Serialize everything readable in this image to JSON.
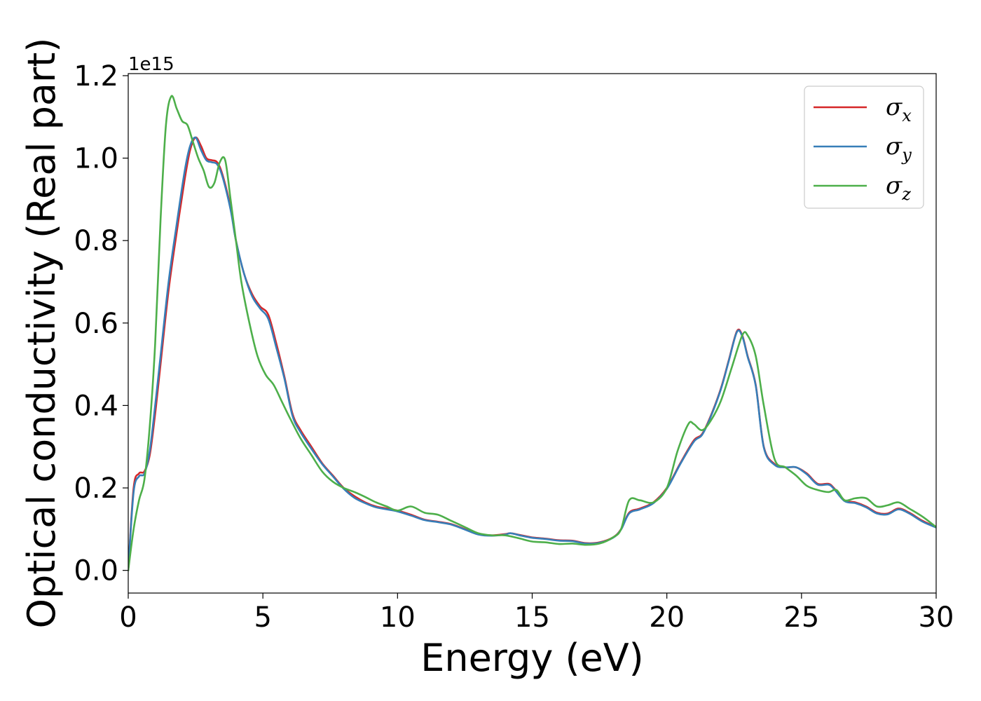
{
  "chart_data": {
    "type": "line",
    "title": "",
    "xlabel": "Energy (eV)",
    "ylabel": "Optical conductivity (Real part)",
    "y_offset_label": "1e15",
    "xlim": [
      0,
      30
    ],
    "ylim": [
      -0.055,
      1.205
    ],
    "xticks": [
      0,
      5,
      10,
      15,
      20,
      25,
      30
    ],
    "xtick_labels": [
      "0",
      "5",
      "10",
      "15",
      "20",
      "25",
      "30"
    ],
    "yticks": [
      0.0,
      0.2,
      0.4,
      0.6,
      0.8,
      1.0,
      1.2
    ],
    "ytick_labels": [
      "0.0",
      "0.2",
      "0.4",
      "0.6",
      "0.8",
      "1.0",
      "1.2"
    ],
    "grid": false,
    "legend_position": "top-right",
    "series": [
      {
        "name": "σx",
        "legend_base": "σ",
        "legend_sub": "x",
        "color": "#d62728",
        "x": [
          0,
          0.2,
          0.4,
          0.6,
          0.8,
          1.0,
          1.2,
          1.5,
          1.8,
          2.1,
          2.3,
          2.5,
          2.7,
          2.9,
          3.1,
          3.3,
          3.5,
          3.8,
          4.0,
          4.3,
          4.6,
          4.9,
          5.2,
          5.5,
          5.8,
          6.1,
          6.4,
          6.8,
          7.2,
          7.6,
          8.0,
          8.4,
          8.8,
          9.2,
          9.6,
          10.0,
          10.5,
          11.0,
          11.5,
          12.0,
          12.5,
          13.0,
          13.5,
          14.0,
          14.2,
          14.6,
          15.0,
          15.5,
          16.0,
          16.5,
          17.0,
          17.5,
          18.0,
          18.3,
          18.6,
          19.0,
          19.5,
          20.0,
          20.5,
          21.0,
          21.3,
          21.6,
          22.0,
          22.3,
          22.6,
          22.8,
          23.0,
          23.3,
          23.6,
          24.0,
          24.4,
          24.8,
          25.2,
          25.6,
          26.0,
          26.2,
          26.6,
          27.0,
          27.4,
          27.8,
          28.2,
          28.6,
          29.0,
          29.5,
          30.0
        ],
        "y": [
          0.0,
          0.2,
          0.235,
          0.24,
          0.28,
          0.38,
          0.5,
          0.68,
          0.82,
          0.95,
          1.02,
          1.05,
          1.03,
          1.0,
          0.995,
          0.99,
          0.96,
          0.88,
          0.8,
          0.72,
          0.67,
          0.64,
          0.62,
          0.55,
          0.47,
          0.38,
          0.34,
          0.3,
          0.26,
          0.23,
          0.2,
          0.18,
          0.165,
          0.155,
          0.15,
          0.145,
          0.135,
          0.123,
          0.118,
          0.112,
          0.1,
          0.088,
          0.085,
          0.088,
          0.09,
          0.085,
          0.08,
          0.077,
          0.073,
          0.072,
          0.066,
          0.068,
          0.08,
          0.1,
          0.14,
          0.15,
          0.165,
          0.2,
          0.26,
          0.315,
          0.33,
          0.37,
          0.44,
          0.51,
          0.58,
          0.57,
          0.52,
          0.45,
          0.3,
          0.258,
          0.25,
          0.25,
          0.235,
          0.21,
          0.21,
          0.2,
          0.17,
          0.165,
          0.155,
          0.14,
          0.138,
          0.15,
          0.14,
          0.12,
          0.105
        ]
      },
      {
        "name": "σy",
        "legend_base": "σ",
        "legend_sub": "y",
        "color": "#377eb8",
        "x": [
          0,
          0.2,
          0.4,
          0.6,
          0.8,
          1.0,
          1.2,
          1.5,
          1.8,
          2.1,
          2.3,
          2.5,
          2.7,
          2.9,
          3.1,
          3.3,
          3.5,
          3.8,
          4.0,
          4.3,
          4.6,
          4.9,
          5.2,
          5.5,
          5.8,
          6.1,
          6.4,
          6.8,
          7.2,
          7.6,
          8.0,
          8.4,
          8.8,
          9.2,
          9.6,
          10.0,
          10.5,
          11.0,
          11.5,
          12.0,
          12.5,
          13.0,
          13.5,
          14.0,
          14.2,
          14.6,
          15.0,
          15.5,
          16.0,
          16.5,
          17.0,
          17.5,
          18.0,
          18.3,
          18.6,
          19.0,
          19.5,
          20.0,
          20.5,
          21.0,
          21.3,
          21.6,
          22.0,
          22.3,
          22.6,
          22.8,
          23.0,
          23.3,
          23.6,
          24.0,
          24.4,
          24.8,
          25.2,
          25.6,
          26.0,
          26.2,
          26.6,
          27.0,
          27.4,
          27.8,
          28.2,
          28.6,
          29.0,
          29.5,
          30.0
        ],
        "y": [
          0.0,
          0.19,
          0.228,
          0.235,
          0.29,
          0.4,
          0.52,
          0.7,
          0.84,
          0.97,
          1.03,
          1.05,
          1.02,
          0.995,
          0.99,
          0.985,
          0.955,
          0.875,
          0.8,
          0.72,
          0.665,
          0.635,
          0.61,
          0.54,
          0.465,
          0.375,
          0.335,
          0.295,
          0.258,
          0.228,
          0.198,
          0.176,
          0.163,
          0.153,
          0.148,
          0.143,
          0.133,
          0.122,
          0.117,
          0.111,
          0.099,
          0.087,
          0.084,
          0.087,
          0.09,
          0.084,
          0.079,
          0.076,
          0.072,
          0.071,
          0.065,
          0.067,
          0.079,
          0.099,
          0.138,
          0.148,
          0.163,
          0.198,
          0.258,
          0.312,
          0.328,
          0.368,
          0.438,
          0.508,
          0.578,
          0.568,
          0.518,
          0.448,
          0.298,
          0.256,
          0.25,
          0.25,
          0.233,
          0.208,
          0.208,
          0.198,
          0.168,
          0.163,
          0.153,
          0.138,
          0.136,
          0.148,
          0.138,
          0.118,
          0.104
        ]
      },
      {
        "name": "σz",
        "legend_base": "σ",
        "legend_sub": "z",
        "color": "#4daf4a",
        "x": [
          0,
          0.2,
          0.4,
          0.6,
          0.8,
          1.0,
          1.2,
          1.4,
          1.6,
          1.8,
          2.0,
          2.2,
          2.4,
          2.6,
          2.8,
          3.0,
          3.2,
          3.4,
          3.6,
          3.8,
          4.0,
          4.2,
          4.5,
          4.8,
          5.1,
          5.4,
          5.7,
          6.0,
          6.4,
          6.8,
          7.2,
          7.6,
          8.0,
          8.4,
          8.8,
          9.2,
          9.6,
          10.0,
          10.5,
          11.0,
          11.5,
          12.0,
          12.5,
          13.0,
          13.5,
          14.0,
          14.5,
          15.0,
          15.5,
          16.0,
          16.5,
          17.0,
          17.5,
          18.0,
          18.3,
          18.6,
          19.0,
          19.5,
          20.0,
          20.4,
          20.8,
          21.0,
          21.3,
          21.6,
          22.0,
          22.4,
          22.8,
          23.0,
          23.3,
          23.6,
          24.0,
          24.4,
          24.8,
          25.2,
          25.6,
          26.0,
          26.3,
          26.6,
          27.0,
          27.4,
          27.8,
          28.2,
          28.6,
          29.0,
          29.5,
          30.0
        ],
        "y": [
          0.0,
          0.1,
          0.17,
          0.22,
          0.35,
          0.55,
          0.85,
          1.08,
          1.15,
          1.12,
          1.09,
          1.08,
          1.04,
          1.0,
          0.97,
          0.93,
          0.94,
          0.99,
          0.995,
          0.9,
          0.8,
          0.7,
          0.6,
          0.52,
          0.475,
          0.45,
          0.41,
          0.37,
          0.32,
          0.28,
          0.24,
          0.215,
          0.2,
          0.19,
          0.178,
          0.165,
          0.155,
          0.145,
          0.155,
          0.14,
          0.135,
          0.12,
          0.105,
          0.09,
          0.085,
          0.085,
          0.078,
          0.07,
          0.068,
          0.064,
          0.065,
          0.062,
          0.065,
          0.08,
          0.1,
          0.17,
          0.17,
          0.165,
          0.2,
          0.29,
          0.355,
          0.355,
          0.34,
          0.36,
          0.41,
          0.49,
          0.57,
          0.57,
          0.52,
          0.4,
          0.27,
          0.25,
          0.23,
          0.205,
          0.195,
          0.19,
          0.195,
          0.17,
          0.175,
          0.175,
          0.155,
          0.158,
          0.165,
          0.15,
          0.13,
          0.105
        ]
      }
    ]
  }
}
